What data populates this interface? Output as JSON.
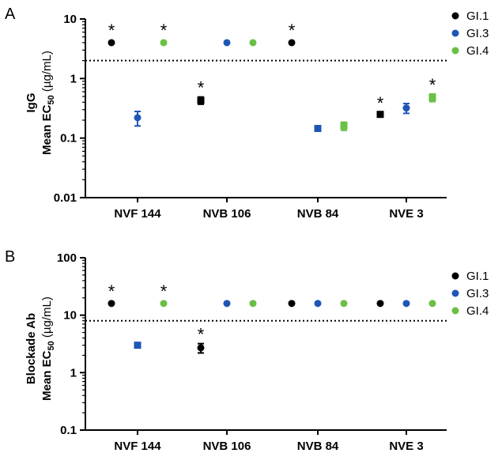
{
  "chart_data": [
    {
      "panel": "A",
      "type": "scatter",
      "ylabel_line1": "IgG",
      "ylabel_line2": "Mean EC",
      "ylabel_sub": "50",
      "ylabel_unit": " (µg/mL)",
      "yscale": "log",
      "ylim": [
        0.01,
        10
      ],
      "yticks": [
        "10",
        "1",
        "0.1",
        "0.01"
      ],
      "ytick_values": [
        10,
        1,
        0.1,
        0.01
      ],
      "categories": [
        "NVF 144",
        "NVB 106",
        "NVB 84",
        "NVE 3"
      ],
      "threshold": 2,
      "legend": "top-right",
      "series": [
        {
          "name": "GI.1",
          "color": "#000000",
          "values": [
            4,
            0.43,
            4,
            0.25
          ],
          "err": [
            0,
            0.06,
            0,
            0.02
          ],
          "marker": [
            "dot",
            "square",
            "dot",
            "square"
          ],
          "star": [
            true,
            true,
            true,
            true
          ]
        },
        {
          "name": "GI.3",
          "color": "#1f56b5",
          "values": [
            0.22,
            4,
            0.145,
            0.32
          ],
          "err": [
            0.06,
            0,
            0.01,
            0.06
          ],
          "marker": [
            "dot",
            "dot",
            "square",
            "dot"
          ],
          "star": [
            false,
            false,
            false,
            false
          ]
        },
        {
          "name": "GI.4",
          "color": "#6abf45",
          "values": [
            4,
            4,
            0.16,
            0.48
          ],
          "err": [
            0,
            0,
            0.025,
            0.07
          ],
          "marker": [
            "dot",
            "dot",
            "square",
            "square"
          ],
          "star": [
            true,
            false,
            false,
            true
          ]
        }
      ]
    },
    {
      "panel": "B",
      "type": "scatter",
      "ylabel_line1": "Blockade Ab",
      "ylabel_line2": "Mean EC",
      "ylabel_sub": "50",
      "ylabel_unit": " (µg/mL)",
      "yscale": "log",
      "ylim": [
        0.1,
        100
      ],
      "yticks": [
        "100",
        "10",
        "1",
        "0.1"
      ],
      "ytick_values": [
        100,
        10,
        1,
        0.1
      ],
      "categories": [
        "NVF 144",
        "NVB 106",
        "NVB 84",
        "NVE 3"
      ],
      "threshold": 8,
      "legend": "top-right",
      "series": [
        {
          "name": "GI.1",
          "color": "#000000",
          "values": [
            16,
            2.7,
            16,
            16
          ],
          "err": [
            0,
            0.5,
            0,
            0
          ],
          "marker": [
            "dot",
            "dot",
            "dot",
            "dot"
          ],
          "star": [
            true,
            true,
            false,
            false
          ]
        },
        {
          "name": "GI.3",
          "color": "#1f56b5",
          "values": [
            3,
            16,
            16,
            16
          ],
          "err": [
            0,
            0,
            0,
            0
          ],
          "marker": [
            "square",
            "dot",
            "dot",
            "dot"
          ],
          "star": [
            false,
            false,
            false,
            false
          ]
        },
        {
          "name": "GI.4",
          "color": "#6abf45",
          "values": [
            16,
            16,
            16,
            16
          ],
          "err": [
            0,
            0,
            0,
            0
          ],
          "marker": [
            "dot",
            "dot",
            "dot",
            "dot"
          ],
          "star": [
            true,
            false,
            false,
            false
          ]
        }
      ]
    }
  ],
  "star_symbol": "*"
}
